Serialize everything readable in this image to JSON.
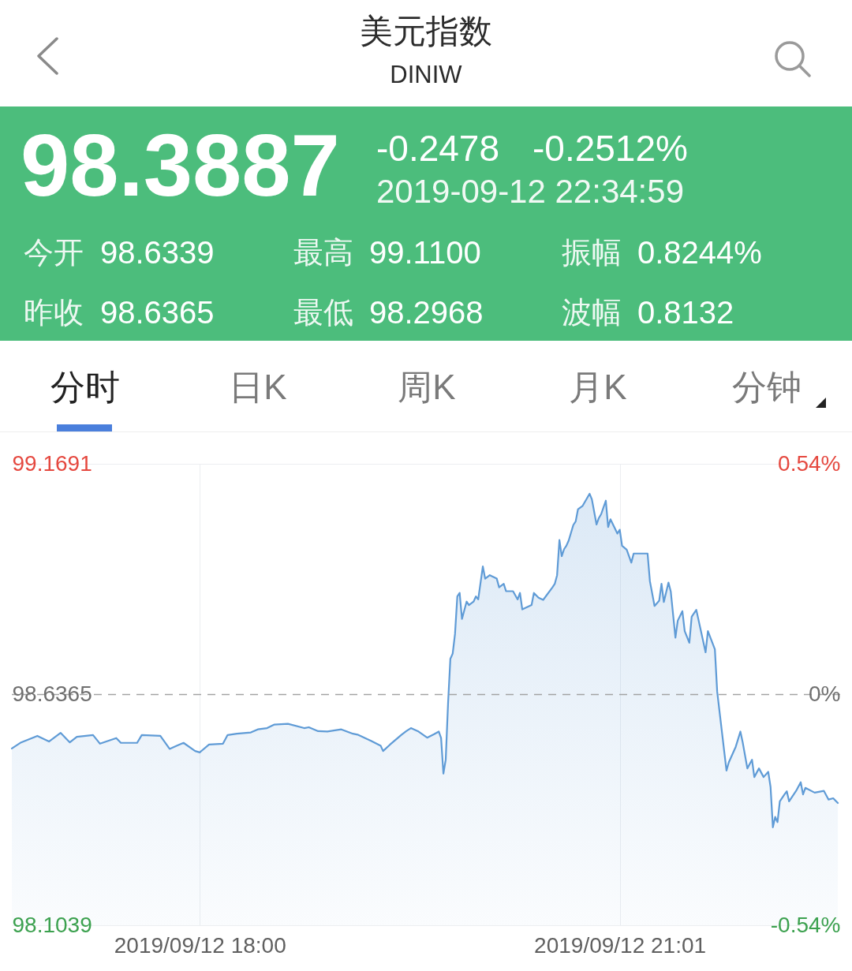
{
  "chart_data": {
    "type": "area",
    "title": "美元指数",
    "subtitle": "DINIW",
    "annotations": [
      "98.3887",
      "-0.2478",
      "-0.2512%",
      "2019-09-12 22:34:59",
      "今开",
      "98.6339",
      "最高",
      "99.1100",
      "振幅",
      "0.8244%",
      "昨收",
      "98.6365",
      "最低",
      "98.2968",
      "波幅",
      "0.8132",
      "分时",
      "日K",
      "周K",
      "月K",
      "分钟"
    ],
    "x": [
      "2019-09-12T16:39",
      "2019-09-12T16:43",
      "2019-09-12T16:50",
      "2019-09-12T16:55",
      "2019-09-12T17:00",
      "2019-09-12T17:04",
      "2019-09-12T17:07",
      "2019-09-12T17:14",
      "2019-09-12T17:17",
      "2019-09-12T17:24",
      "2019-09-12T17:26",
      "2019-09-12T17:33",
      "2019-09-12T17:35",
      "2019-09-12T17:43",
      "2019-09-12T17:47",
      "2019-09-12T17:50",
      "2019-09-12T17:53",
      "2019-09-12T17:58",
      "2019-09-12T18:00",
      "2019-09-12T18:04",
      "2019-09-12T18:10",
      "2019-09-12T18:12",
      "2019-09-12T18:16",
      "2019-09-12T18:22",
      "2019-09-12T18:25",
      "2019-09-12T18:29",
      "2019-09-12T18:32",
      "2019-09-12T18:38",
      "2019-09-12T18:45",
      "2019-09-12T18:47",
      "2019-09-12T18:51",
      "2019-09-12T18:55",
      "2019-09-12T19:01",
      "2019-09-12T19:06",
      "2019-09-12T19:08",
      "2019-09-12T19:14",
      "2019-09-12T19:18",
      "2019-09-12T19:19",
      "2019-09-12T19:22",
      "2019-09-12T19:27",
      "2019-09-12T19:29",
      "2019-09-12T19:31",
      "2019-09-12T19:34",
      "2019-09-12T19:38",
      "2019-09-12T19:41",
      "2019-09-12T19:43",
      "2019-09-12T19:44",
      "2019-09-12T19:45",
      "2019-09-12T19:46",
      "2019-09-12T19:47",
      "2019-09-12T19:48",
      "2019-09-12T19:49",
      "2019-09-12T19:50",
      "2019-09-12T19:51",
      "2019-09-12T19:52",
      "2019-09-12T19:53",
      "2019-09-12T19:55",
      "2019-09-12T19:56",
      "2019-09-12T19:58",
      "2019-09-12T19:59",
      "2019-09-12T20:00",
      "2019-09-12T20:02",
      "2019-09-12T20:03",
      "2019-09-12T20:05",
      "2019-09-12T20:08",
      "2019-09-12T20:09",
      "2019-09-12T20:11",
      "2019-09-12T20:12",
      "2019-09-12T20:15",
      "2019-09-12T20:17",
      "2019-09-12T20:18",
      "2019-09-12T20:19",
      "2019-09-12T20:23",
      "2019-09-12T20:24",
      "2019-09-12T20:26",
      "2019-09-12T20:28",
      "2019-09-12T20:32",
      "2019-09-12T20:33",
      "2019-09-12T20:34",
      "2019-09-12T20:35",
      "2019-09-12T20:36",
      "2019-09-12T20:37",
      "2019-09-12T20:38",
      "2019-09-12T20:39",
      "2019-09-12T20:41",
      "2019-09-12T20:42",
      "2019-09-12T20:43",
      "2019-09-12T20:45",
      "2019-09-12T20:48",
      "2019-09-12T20:49",
      "2019-09-12T20:51",
      "2019-09-12T20:52",
      "2019-09-12T20:53",
      "2019-09-12T20:55",
      "2019-09-12T20:56",
      "2019-09-12T20:57",
      "2019-09-12T21:00",
      "2019-09-12T21:01",
      "2019-09-12T21:02",
      "2019-09-12T21:04",
      "2019-09-12T21:06",
      "2019-09-12T21:07",
      "2019-09-12T21:13",
      "2019-09-12T21:14",
      "2019-09-12T21:16",
      "2019-09-12T21:18",
      "2019-09-12T21:19",
      "2019-09-12T21:20",
      "2019-09-12T21:22",
      "2019-09-12T21:23",
      "2019-09-12T21:25",
      "2019-09-12T21:26",
      "2019-09-12T21:28",
      "2019-09-12T21:29",
      "2019-09-12T21:31",
      "2019-09-12T21:32",
      "2019-09-12T21:34",
      "2019-09-12T21:38",
      "2019-09-12T21:39",
      "2019-09-12T21:42",
      "2019-09-12T21:43",
      "2019-09-12T21:47",
      "2019-09-12T21:48",
      "2019-09-12T21:51",
      "2019-09-12T21:53",
      "2019-09-12T21:54",
      "2019-09-12T21:56",
      "2019-09-12T21:58",
      "2019-09-12T21:59",
      "2019-09-12T22:01",
      "2019-09-12T22:03",
      "2019-09-12T22:05",
      "2019-09-12T22:06",
      "2019-09-12T22:07",
      "2019-09-12T22:08",
      "2019-09-12T22:09",
      "2019-09-12T22:10",
      "2019-09-12T22:12",
      "2019-09-12T22:13",
      "2019-09-12T22:14",
      "2019-09-12T22:17",
      "2019-09-12T22:19",
      "2019-09-12T22:20",
      "2019-09-12T22:21",
      "2019-09-12T22:25",
      "2019-09-12T22:29",
      "2019-09-12T22:31",
      "2019-09-12T22:33",
      "2019-09-12T22:35"
    ],
    "series": [
      {
        "color": "#5f9bd6",
        "values": [
          98.512,
          98.526,
          98.541,
          98.528,
          98.548,
          98.526,
          98.539,
          98.543,
          98.523,
          98.536,
          98.525,
          98.525,
          98.543,
          98.541,
          98.511,
          98.518,
          98.525,
          98.506,
          98.503,
          98.521,
          98.523,
          98.543,
          98.546,
          98.549,
          98.556,
          98.559,
          98.567,
          98.569,
          98.559,
          98.561,
          98.552,
          98.551,
          98.556,
          98.546,
          98.544,
          98.529,
          98.518,
          98.506,
          98.521,
          98.544,
          98.552,
          98.559,
          98.552,
          98.537,
          98.545,
          98.551,
          98.536,
          98.454,
          98.486,
          98.615,
          98.719,
          98.731,
          98.776,
          98.863,
          98.871,
          98.811,
          98.851,
          98.843,
          98.851,
          98.863,
          98.856,
          98.932,
          98.904,
          98.912,
          98.904,
          98.884,
          98.892,
          98.875,
          98.875,
          98.856,
          98.871,
          98.833,
          98.843,
          98.871,
          98.86,
          98.855,
          98.884,
          98.892,
          98.912,
          98.993,
          98.956,
          98.972,
          98.98,
          98.992,
          99.028,
          99.036,
          99.064,
          99.072,
          99.1,
          99.087,
          99.029,
          99.044,
          99.053,
          99.084,
          99.023,
          99.041,
          99.008,
          99.017,
          98.98,
          98.971,
          98.941,
          98.962,
          98.962,
          98.898,
          98.841,
          98.853,
          98.892,
          98.85,
          98.895,
          98.874,
          98.768,
          98.807,
          98.829,
          98.783,
          98.756,
          98.816,
          98.832,
          98.734,
          98.783,
          98.741,
          98.643,
          98.461,
          98.48,
          98.516,
          98.551,
          98.526,
          98.466,
          98.486,
          98.446,
          98.466,
          98.446,
          98.458,
          98.423,
          98.33,
          98.354,
          98.342,
          98.39,
          98.406,
          98.413,
          98.39,
          98.414,
          98.434,
          98.406,
          98.421,
          98.41,
          98.414,
          98.394,
          98.397,
          98.386
        ]
      }
    ],
    "xlim": [
      "2019-09-12T16:39",
      "2019-09-12T22:36"
    ],
    "xticks": [
      {
        "value": "2019-09-12T18:00",
        "label": "2019/09/12 18:00"
      },
      {
        "value": "2019-09-12T21:01",
        "label": "2019/09/12 21:01"
      }
    ],
    "ylim": [
      98.1039,
      99.1691
    ],
    "yticks": [
      98.1039,
      98.6365,
      99.1691
    ],
    "y2lim": [
      -0.54,
      0.54
    ],
    "y2ticks": [
      {
        "value": -0.54,
        "label": "-0.54%"
      },
      {
        "value": 0,
        "label": "0%"
      },
      {
        "value": 0.54,
        "label": "0.54%"
      }
    ],
    "ref_lines": [
      {
        "axis": "y",
        "value": 98.6365,
        "color": "#a3a3a3",
        "line_style": "dashed"
      }
    ],
    "grid": true
  }
}
